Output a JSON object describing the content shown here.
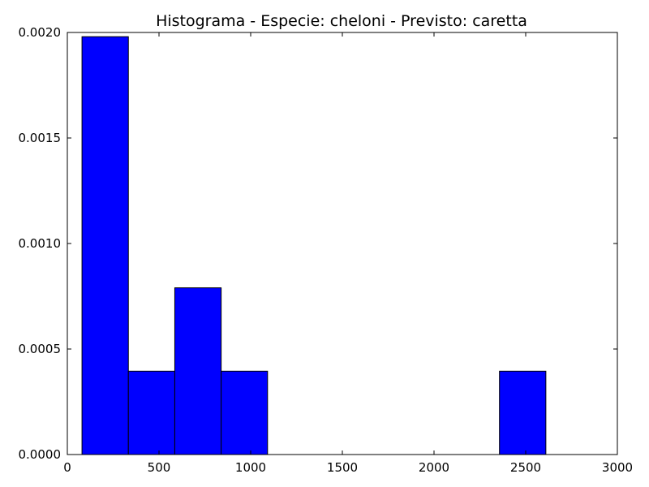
{
  "chart_data": {
    "type": "bar",
    "title": "Histograma - Especie: cheloni - Previsto: caretta",
    "xlabel": "",
    "ylabel": "",
    "xlim": [
      0,
      3000
    ],
    "ylim": [
      0,
      0.002
    ],
    "x_ticks": [
      0,
      500,
      1000,
      1500,
      2000,
      2500,
      3000
    ],
    "x_tick_labels": [
      "0",
      "500",
      "1000",
      "1500",
      "2000",
      "2500",
      "3000"
    ],
    "y_ticks": [
      0,
      0.0005,
      0.001,
      0.0015,
      0.002
    ],
    "y_tick_labels": [
      "0.0000",
      "0.0005",
      "0.0010",
      "0.0015",
      "0.0020"
    ],
    "bins": [
      {
        "x0": 80,
        "x1": 333,
        "value": 0.00198
      },
      {
        "x0": 333,
        "x1": 586,
        "value": 0.000395
      },
      {
        "x0": 586,
        "x1": 839,
        "value": 0.00079
      },
      {
        "x0": 839,
        "x1": 1092,
        "value": 0.000395
      },
      {
        "x0": 1092,
        "x1": 1345,
        "value": 0
      },
      {
        "x0": 1345,
        "x1": 1598,
        "value": 0
      },
      {
        "x0": 1598,
        "x1": 1851,
        "value": 0
      },
      {
        "x0": 1851,
        "x1": 2104,
        "value": 0
      },
      {
        "x0": 2104,
        "x1": 2357,
        "value": 0
      },
      {
        "x0": 2357,
        "x1": 2610,
        "value": 0.000395
      }
    ],
    "bar_color": "#0000ff",
    "edge_color": "#000000",
    "grid": false
  }
}
